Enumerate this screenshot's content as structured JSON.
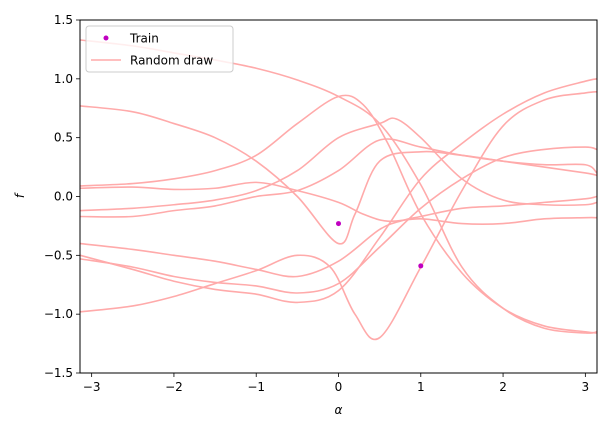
{
  "chart_data": {
    "type": "line",
    "title": "",
    "xlabel": "α",
    "ylabel": "f",
    "xlim": [
      -3.14159,
      3.14159
    ],
    "ylim": [
      -1.5,
      1.5
    ],
    "xticks": [
      -3,
      -2,
      -1,
      0,
      1,
      2,
      3
    ],
    "yticks": [
      -1.5,
      -1.0,
      -0.5,
      0.0,
      0.5,
      1.0,
      1.5
    ],
    "xtick_labels": [
      "−3",
      "−2",
      "−1",
      "0",
      "1",
      "2",
      "3"
    ],
    "ytick_labels": [
      "−1.5",
      "−1.0",
      "−0.5",
      "0.0",
      "0.5",
      "1.0",
      "1.5"
    ],
    "grid": false,
    "legend": {
      "placement": "top-left",
      "entries": [
        {
          "label": "Train",
          "marker": "dot",
          "color": "#c000c0"
        },
        {
          "label": "Random draw",
          "marker": "line",
          "color": "#ffaaaa"
        }
      ]
    },
    "train": {
      "name": "Train",
      "color": "#c000c0",
      "points": [
        [
          0.0,
          -0.23
        ],
        [
          1.0,
          -0.59
        ]
      ]
    },
    "draws_color": "#ffaaaa",
    "draws": [
      {
        "x": [
          -3.14,
          -2.5,
          -2.0,
          -1.5,
          -1.0,
          -0.5,
          0.0,
          0.5,
          1.0,
          1.5,
          2.0,
          2.5,
          3.0,
          3.14
        ],
        "y": [
          1.33,
          1.28,
          1.22,
          1.16,
          1.09,
          0.99,
          0.85,
          0.62,
          0.1,
          -0.6,
          -0.95,
          -1.12,
          -1.16,
          -1.15
        ]
      },
      {
        "x": [
          -3.14,
          -2.5,
          -2.0,
          -1.5,
          -1.0,
          -0.5,
          0.0,
          0.2,
          0.5,
          1.0,
          1.5,
          2.0,
          2.5,
          3.0,
          3.14
        ],
        "y": [
          0.77,
          0.72,
          0.62,
          0.5,
          0.3,
          0.0,
          -0.4,
          -0.15,
          0.3,
          0.38,
          0.35,
          0.3,
          0.25,
          0.2,
          0.18
        ]
      },
      {
        "x": [
          -3.14,
          -2.5,
          -2.0,
          -1.5,
          -1.0,
          -0.5,
          0.0,
          0.3,
          0.6,
          1.0,
          1.5,
          2.0,
          2.5,
          3.0,
          3.14
        ],
        "y": [
          0.09,
          0.11,
          0.15,
          0.22,
          0.35,
          0.62,
          0.85,
          0.78,
          0.45,
          -0.15,
          -0.65,
          -0.95,
          -1.1,
          -1.15,
          -1.16
        ]
      },
      {
        "x": [
          -3.14,
          -2.5,
          -2.0,
          -1.5,
          -1.0,
          -0.5,
          0.0,
          0.5,
          0.7,
          1.0,
          1.5,
          2.0,
          2.5,
          3.0,
          3.14
        ],
        "y": [
          -0.12,
          -0.1,
          -0.07,
          -0.03,
          0.05,
          0.22,
          0.5,
          0.62,
          0.66,
          0.5,
          0.15,
          -0.03,
          -0.07,
          -0.07,
          -0.05
        ]
      },
      {
        "x": [
          -3.14,
          -2.5,
          -2.0,
          -1.5,
          -1.0,
          -0.5,
          0.0,
          0.3,
          0.6,
          1.0,
          1.5,
          2.0,
          2.5,
          3.0,
          3.14
        ],
        "y": [
          0.07,
          0.08,
          0.06,
          0.07,
          0.12,
          0.05,
          -0.05,
          -0.15,
          -0.21,
          -0.19,
          -0.23,
          -0.23,
          -0.19,
          -0.18,
          -0.18
        ]
      },
      {
        "x": [
          -3.14,
          -2.5,
          -2.0,
          -1.5,
          -1.0,
          -0.5,
          0.0,
          0.5,
          1.0,
          1.5,
          2.0,
          2.5,
          3.0,
          3.14
        ],
        "y": [
          -0.17,
          -0.17,
          -0.12,
          -0.08,
          0.0,
          0.05,
          0.22,
          0.48,
          0.42,
          0.35,
          0.3,
          0.27,
          0.27,
          0.2
        ]
      },
      {
        "x": [
          -3.14,
          -2.5,
          -2.0,
          -1.5,
          -1.0,
          -0.5,
          0.0,
          0.5,
          0.8,
          1.0,
          1.5,
          2.0,
          2.5,
          3.0,
          3.14
        ],
        "y": [
          -0.4,
          -0.45,
          -0.5,
          -0.55,
          -0.62,
          -0.68,
          -0.55,
          -0.28,
          -0.2,
          -0.17,
          -0.1,
          -0.08,
          -0.05,
          -0.02,
          0.0
        ]
      },
      {
        "x": [
          -3.14,
          -2.5,
          -2.0,
          -1.5,
          -1.0,
          -0.5,
          0.0,
          0.5,
          1.0,
          1.5,
          2.0,
          2.5,
          3.0,
          3.14
        ],
        "y": [
          -0.5,
          -0.62,
          -0.72,
          -0.79,
          -0.83,
          -0.9,
          -0.8,
          -0.35,
          0.15,
          0.45,
          0.7,
          0.88,
          0.98,
          1.0
        ]
      },
      {
        "x": [
          -3.14,
          -2.5,
          -2.0,
          -1.5,
          -1.0,
          -0.5,
          0.0,
          0.5,
          1.0,
          1.5,
          2.0,
          2.5,
          3.0,
          3.14
        ],
        "y": [
          -0.53,
          -0.6,
          -0.68,
          -0.73,
          -0.76,
          -0.82,
          -0.74,
          -0.43,
          -0.1,
          0.15,
          0.33,
          0.4,
          0.42,
          0.4
        ]
      },
      {
        "x": [
          -3.14,
          -2.5,
          -2.0,
          -1.5,
          -1.0,
          -0.5,
          -0.1,
          0.2,
          0.5,
          1.0,
          1.5,
          2.0,
          2.5,
          3.0,
          3.14
        ],
        "y": [
          -0.98,
          -0.93,
          -0.85,
          -0.74,
          -0.63,
          -0.5,
          -0.6,
          -1.0,
          -1.2,
          -0.6,
          0.05,
          0.6,
          0.82,
          0.88,
          0.89
        ]
      }
    ]
  }
}
